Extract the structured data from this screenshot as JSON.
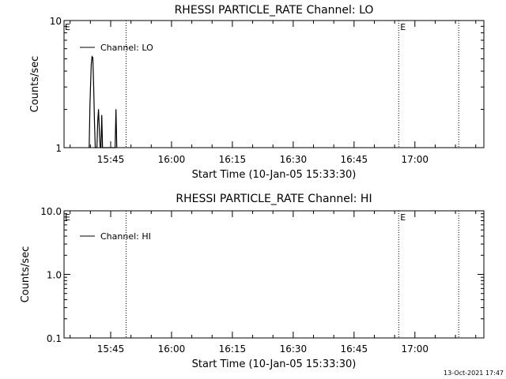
{
  "footer": {
    "timestamp": "13-Oct-2021 17:47"
  },
  "chart_data": [
    {
      "type": "line",
      "title": "RHESSI PARTICLE_RATE Channel: LO",
      "xlabel": "Start Time (10-Jan-05 15:33:30)",
      "ylabel": "Counts/sec",
      "y_scale": "log",
      "ylim": [
        1,
        10
      ],
      "y_ticks": [
        {
          "value": 1,
          "label": "1"
        },
        {
          "value": 10,
          "label": "10"
        }
      ],
      "x_unit": "minutes after 15:33:30",
      "xlim": [
        0,
        103.5
      ],
      "x_ticks": [
        {
          "value": 11.5,
          "label": "15:45"
        },
        {
          "value": 26.5,
          "label": "16:00"
        },
        {
          "value": 41.5,
          "label": "16:15"
        },
        {
          "value": 56.5,
          "label": "16:30"
        },
        {
          "value": 71.5,
          "label": "16:45"
        },
        {
          "value": 86.5,
          "label": "17:00"
        }
      ],
      "legend": {
        "placement": "top-left",
        "entries": [
          "Channel: LO"
        ]
      },
      "vlines": [
        {
          "x": 15.3,
          "marker": ""
        },
        {
          "x": 82.5,
          "marker": "E"
        },
        {
          "x": 97.3,
          "marker": ""
        }
      ],
      "corner_marker": "E",
      "series": [
        {
          "name": "Channel: LO",
          "points": [
            [
              6.2,
              1
            ],
            [
              6.4,
              2.2
            ],
            [
              6.7,
              4.5
            ],
            [
              6.9,
              5.2
            ],
            [
              7.1,
              5.1
            ],
            [
              7.3,
              3.0
            ],
            [
              7.5,
              1.6
            ],
            [
              7.7,
              1
            ],
            [
              8.1,
              1
            ],
            [
              8.3,
              1.6
            ],
            [
              8.5,
              2.0
            ],
            [
              8.7,
              1.4
            ],
            [
              8.9,
              1
            ],
            [
              9.1,
              1
            ],
            [
              9.3,
              1.8
            ],
            [
              9.5,
              1
            ],
            [
              12.6,
              1
            ],
            [
              12.8,
              2.0
            ],
            [
              13.0,
              1
            ]
          ]
        }
      ]
    },
    {
      "type": "line",
      "title": "RHESSI PARTICLE_RATE Channel: HI",
      "xlabel": "Start Time (10-Jan-05 15:33:30)",
      "ylabel": "Counts/sec",
      "y_scale": "log",
      "ylim": [
        0.1,
        10
      ],
      "y_ticks": [
        {
          "value": 0.1,
          "label": "0.1"
        },
        {
          "value": 1,
          "label": "1.0"
        },
        {
          "value": 10,
          "label": "10.0"
        }
      ],
      "x_unit": "minutes after 15:33:30",
      "xlim": [
        0,
        103.5
      ],
      "x_ticks": [
        {
          "value": 11.5,
          "label": "15:45"
        },
        {
          "value": 26.5,
          "label": "16:00"
        },
        {
          "value": 41.5,
          "label": "16:15"
        },
        {
          "value": 56.5,
          "label": "16:30"
        },
        {
          "value": 71.5,
          "label": "16:45"
        },
        {
          "value": 86.5,
          "label": "17:00"
        }
      ],
      "legend": {
        "placement": "top-left",
        "entries": [
          "Channel: HI"
        ]
      },
      "vlines": [
        {
          "x": 15.3,
          "marker": ""
        },
        {
          "x": 82.5,
          "marker": "E"
        },
        {
          "x": 97.3,
          "marker": ""
        }
      ],
      "corner_marker": "E",
      "series": [
        {
          "name": "Channel: HI",
          "points": []
        }
      ]
    }
  ]
}
